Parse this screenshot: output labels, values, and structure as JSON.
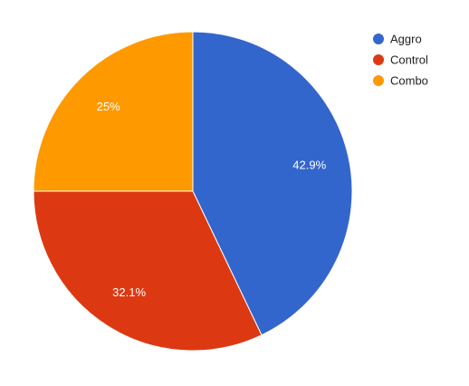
{
  "chart_data": {
    "type": "pie",
    "slices": [
      {
        "name": "Aggro",
        "value": 42.9,
        "label": "42.9%",
        "color": "#3366cc"
      },
      {
        "name": "Control",
        "value": 32.1,
        "label": "32.1%",
        "color": "#dc3912"
      },
      {
        "name": "Combo",
        "value": 25,
        "label": "25%",
        "color": "#ff9900"
      }
    ],
    "legend_position": "top-right",
    "start_angle_deg": 0,
    "direction": "clockwise"
  }
}
